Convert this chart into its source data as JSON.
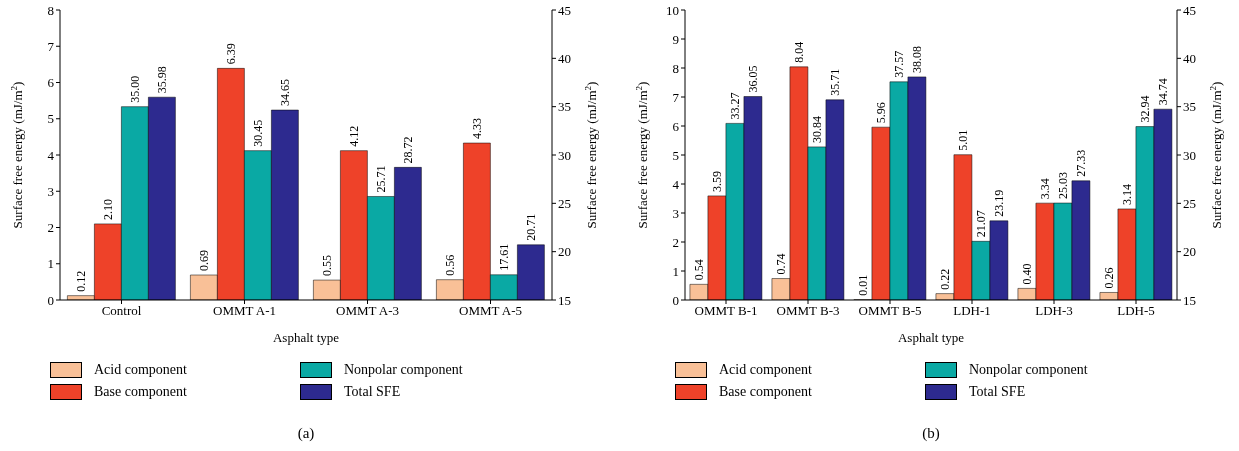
{
  "chart_data": [
    {
      "type": "bar",
      "annotations": [
        "(a)"
      ],
      "xlabel": "Asphalt type",
      "ylabel": "Surface free energy (mJ/m$^{2}$)",
      "y2label": "Surface free energy (mJ/m$^{2}$)",
      "categories": [
        "Control",
        "OMMT A-1",
        "OMMT A-3",
        "OMMT A-5"
      ],
      "ylim": [
        0,
        8
      ],
      "yticks": [
        0,
        1,
        2,
        3,
        4,
        5,
        6,
        7,
        8
      ],
      "y2lim": [
        15,
        45
      ],
      "y2ticks": [
        15,
        20,
        25,
        30,
        35,
        40,
        45
      ],
      "legend": "bottom",
      "series": [
        {
          "name": "Acid component",
          "color": "#f9c097",
          "values": [
            0.12,
            0.69,
            0.55,
            0.56
          ],
          "value_labels": [
            "0.12",
            "0.69",
            "0.55",
            "0.56"
          ]
        },
        {
          "name": "Base component",
          "color": "#ee4229",
          "values": [
            2.1,
            6.39,
            4.12,
            4.33
          ],
          "value_labels": [
            "2.10",
            "6.39",
            "4.12",
            "4.33"
          ]
        },
        {
          "name": "Nonpolar component",
          "color": "#0aa9a4",
          "axis": "y2",
          "values": [
            35.0,
            30.45,
            25.71,
            17.61
          ],
          "value_labels": [
            "35.00",
            "30.45",
            "25.71",
            "17.61"
          ]
        },
        {
          "name": "Total SFE",
          "color": "#2d2a8f",
          "axis": "y2",
          "values": [
            35.98,
            34.65,
            28.72,
            20.71
          ],
          "value_labels": [
            "35.98",
            "34.65",
            "28.72",
            "20.71"
          ]
        }
      ]
    },
    {
      "type": "bar",
      "annotations": [
        "(b)"
      ],
      "xlabel": "Asphalt type",
      "ylabel": "Surface free energy (mJ/m$^{2}$)",
      "y2label": "Surface free energy (mJ/m$^{2}$)",
      "categories": [
        "OMMT B-1",
        "OMMT B-3",
        "OMMT B-5",
        "LDH-1",
        "LDH-3",
        "LDH-5"
      ],
      "ylim": [
        0,
        10
      ],
      "yticks": [
        0,
        1,
        2,
        3,
        4,
        5,
        6,
        7,
        8,
        9,
        10
      ],
      "y2lim": [
        15,
        45
      ],
      "y2ticks": [
        15,
        20,
        25,
        30,
        35,
        40,
        45
      ],
      "legend": "bottom",
      "series": [
        {
          "name": "Acid component",
          "color": "#f9c097",
          "values": [
            0.54,
            0.74,
            0.01,
            0.22,
            0.4,
            0.26
          ],
          "value_labels": [
            "0.54",
            "0.74",
            "0.01",
            "0.22",
            "0.40",
            "0.26"
          ]
        },
        {
          "name": "Base component",
          "color": "#ee4229",
          "values": [
            3.59,
            8.04,
            5.96,
            5.01,
            3.34,
            3.14
          ],
          "value_labels": [
            "3.59",
            "8.04",
            "5.96",
            "5.01",
            "3.34",
            "3.14"
          ]
        },
        {
          "name": "Nonpolar component",
          "color": "#0aa9a4",
          "axis": "y2",
          "values": [
            33.27,
            30.84,
            37.57,
            21.07,
            25.03,
            32.94
          ],
          "value_labels": [
            "33.27",
            "30.84",
            "37.57",
            "21.07",
            "25.03",
            "32.94"
          ]
        },
        {
          "name": "Total SFE",
          "color": "#2d2a8f",
          "axis": "y2",
          "values": [
            36.05,
            35.71,
            38.08,
            23.19,
            27.33,
            34.74
          ],
          "value_labels": [
            "36.05",
            "35.71",
            "38.08",
            "23.19",
            "27.33",
            "34.74"
          ]
        }
      ]
    }
  ]
}
